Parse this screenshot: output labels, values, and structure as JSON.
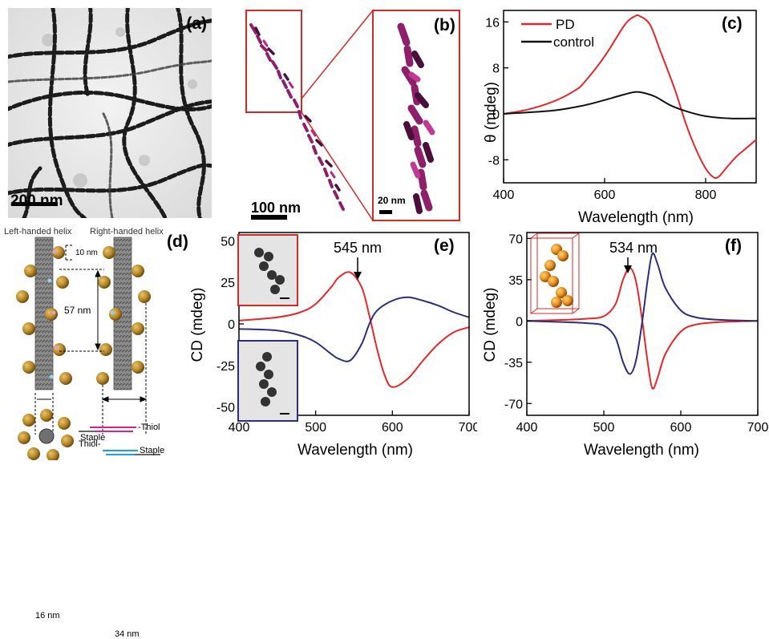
{
  "panels": {
    "a": {
      "label": "(a)",
      "scalebar": "200 nm"
    },
    "b": {
      "label": "(b)",
      "scalebar_main": "100 nm",
      "scalebar_inset": "20 nm"
    },
    "c": {
      "label": "(c)"
    },
    "d": {
      "label": "(d)",
      "left_title": "Left-handed helix",
      "right_title": "Right-handed helix",
      "dim_10": "10 nm",
      "dim_57": "57 nm",
      "dim_16": "16 nm",
      "dim_34": "34 nm",
      "thiol_top": "-Thiol",
      "staple_top": "Staple",
      "thiol_bottom": "Thiol-",
      "staple_bottom": "Staple"
    },
    "e": {
      "label": "(e)",
      "annotation": "545 nm"
    },
    "f": {
      "label": "(f)",
      "annotation": "534 nm"
    }
  },
  "colors": {
    "red": "#e8262a",
    "black": "#111111",
    "navy": "#2b2f7a",
    "frame_red": "#d42a2a"
  },
  "chart_data": [
    {
      "id": "c",
      "type": "line",
      "xlabel": "Wavelength (nm)",
      "ylabel": "θ (mdeg)",
      "xlim": [
        400,
        900
      ],
      "ylim": [
        -12,
        18
      ],
      "xticks": [
        400,
        600,
        800
      ],
      "yticks": [
        -8,
        0,
        8,
        16
      ],
      "legend_position": "top-left",
      "series": [
        {
          "name": "PD",
          "color": "#e8262a",
          "x": [
            400,
            450,
            500,
            540,
            560,
            600,
            640,
            660,
            670,
            690,
            710,
            740,
            760,
            780,
            800,
            815,
            825,
            840,
            860,
            880,
            900
          ],
          "y": [
            0,
            0.8,
            2.2,
            4,
            5.5,
            10,
            15.5,
            17,
            17,
            15.5,
            11,
            4,
            -1.5,
            -6,
            -9.5,
            -11,
            -11,
            -9.5,
            -7.5,
            -6,
            -4.5
          ]
        },
        {
          "name": "control",
          "color": "#111111",
          "x": [
            400,
            500,
            560,
            600,
            640,
            660,
            675,
            700,
            730,
            760,
            800,
            850,
            900
          ],
          "y": [
            0,
            0.6,
            1.5,
            2.4,
            3.4,
            3.8,
            3.7,
            3,
            1.5,
            0.5,
            -0.4,
            -0.8,
            -0.8
          ]
        }
      ]
    },
    {
      "id": "e",
      "type": "line",
      "xlabel": "Wavelength (nm)",
      "ylabel": "CD (mdeg)",
      "xlim": [
        400,
        700
      ],
      "ylim": [
        -55,
        55
      ],
      "xticks": [
        400,
        500,
        600,
        700
      ],
      "yticks": [
        -50,
        -25,
        0,
        25,
        50
      ],
      "series": [
        {
          "color": "#e8262a",
          "x": [
            400,
            450,
            480,
            500,
            520,
            530,
            545,
            560,
            570,
            580,
            590,
            600,
            620,
            640,
            660,
            680,
            700
          ],
          "y": [
            2,
            4,
            7,
            12,
            22,
            28,
            31,
            22,
            5,
            -15,
            -31,
            -38,
            -33,
            -22,
            -12,
            -5,
            -2
          ]
        },
        {
          "color": "#2b2f7a",
          "x": [
            400,
            450,
            480,
            500,
            520,
            530,
            545,
            560,
            570,
            580,
            600,
            620,
            640,
            660,
            680,
            700
          ],
          "y": [
            -3,
            -4,
            -7,
            -11,
            -18,
            -21,
            -22,
            -12,
            0,
            8,
            14,
            16,
            14,
            11,
            7,
            4
          ]
        }
      ]
    },
    {
      "id": "f",
      "type": "line",
      "xlabel": "Wavelength (nm)",
      "ylabel": "CD (mdeg)",
      "xlim": [
        400,
        700
      ],
      "ylim": [
        -80,
        75
      ],
      "xticks": [
        400,
        500,
        600,
        700
      ],
      "yticks": [
        -70,
        -35,
        0,
        35,
        70
      ],
      "series": [
        {
          "color": "#e8262a",
          "x": [
            400,
            450,
            480,
            500,
            515,
            525,
            534,
            542,
            550,
            557,
            563,
            570,
            580,
            600,
            620,
            650,
            700
          ],
          "y": [
            0,
            1,
            2,
            4,
            14,
            35,
            45,
            33,
            0,
            -35,
            -57,
            -48,
            -28,
            -9,
            -3,
            -1,
            0
          ]
        },
        {
          "color": "#2b2f7a",
          "x": [
            400,
            450,
            480,
            500,
            515,
            525,
            534,
            542,
            550,
            557,
            563,
            570,
            580,
            600,
            620,
            650,
            700
          ],
          "y": [
            0,
            -1,
            -2,
            -4,
            -14,
            -35,
            -45,
            -33,
            0,
            35,
            57,
            48,
            28,
            9,
            3,
            1,
            0
          ]
        }
      ]
    }
  ]
}
